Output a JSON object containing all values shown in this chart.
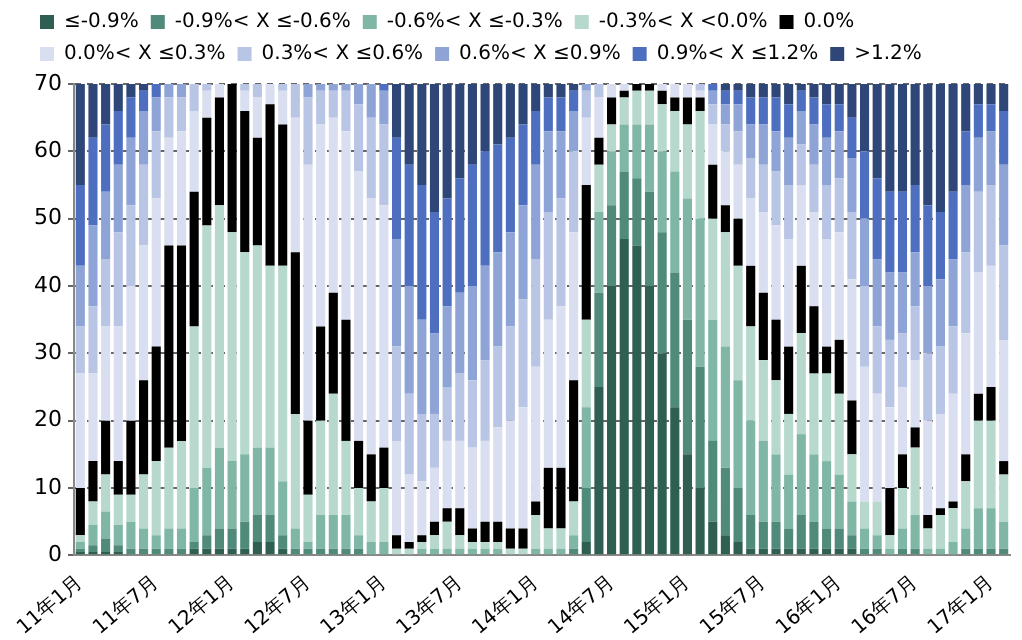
{
  "chart_data": {
    "type": "bar",
    "stacked": true,
    "legend": "top",
    "grid": "y",
    "ylim": [
      0,
      70
    ],
    "yticks": [
      0,
      10,
      20,
      30,
      40,
      50,
      60,
      70
    ],
    "categories": [
      "11年1月",
      null,
      null,
      null,
      null,
      null,
      "11年7月",
      null,
      null,
      null,
      null,
      null,
      "12年1月",
      null,
      null,
      null,
      null,
      null,
      "12年7月",
      null,
      null,
      null,
      null,
      null,
      "13年1月",
      null,
      null,
      null,
      null,
      null,
      "13年7月",
      null,
      null,
      null,
      null,
      null,
      "14年1月",
      null,
      null,
      null,
      null,
      null,
      "14年7月",
      null,
      null,
      null,
      null,
      null,
      "15年1月",
      null,
      null,
      null,
      null,
      null,
      "15年7月",
      null,
      null,
      null,
      null,
      null,
      "16年1月",
      null,
      null,
      null,
      null,
      null,
      "16年7月",
      null,
      null,
      null,
      null,
      null,
      "17年1月",
      null
    ],
    "series": [
      {
        "name": "≤-0.9%",
        "color": "#2f5f52",
        "values": [
          0.5,
          0.5,
          0.5,
          0.5,
          0,
          0,
          0,
          0,
          0,
          1,
          1,
          1,
          1,
          1,
          2,
          2,
          1,
          0,
          0,
          0,
          0,
          0,
          0,
          0,
          0,
          0,
          0,
          0,
          0,
          0,
          0,
          0,
          0,
          0,
          0,
          0,
          0,
          0,
          0,
          0,
          2,
          25,
          40,
          47,
          46,
          40,
          30,
          22,
          15,
          10,
          5,
          3,
          2,
          1,
          1,
          1,
          1,
          1,
          1,
          1,
          1,
          1,
          0,
          0,
          0,
          0,
          0,
          0,
          0,
          0,
          0,
          0,
          0,
          0
        ]
      },
      {
        "name": "-0.9%< X ≤-0.6%",
        "color": "#4f8a7a",
        "values": [
          0.5,
          1,
          2,
          1,
          1,
          1,
          1,
          1,
          1,
          1,
          2,
          3,
          3,
          4,
          4,
          4,
          2,
          1,
          1,
          1,
          1,
          1,
          1,
          0,
          0,
          0,
          0,
          0,
          0,
          0,
          0,
          0,
          0,
          0,
          0,
          0,
          0,
          0,
          0,
          1,
          8,
          14,
          12,
          10,
          10,
          14,
          18,
          20,
          20,
          18,
          12,
          10,
          8,
          5,
          4,
          4,
          3,
          5,
          4,
          3,
          3,
          2,
          1,
          1,
          0,
          1,
          1,
          0,
          0,
          0,
          1,
          1,
          1,
          1
        ]
      },
      {
        "name": "-0.6%< X ≤-0.3%",
        "color": "#80b6a6",
        "values": [
          1,
          3,
          4,
          3,
          4,
          3,
          2,
          3,
          3,
          8,
          10,
          12,
          10,
          10,
          10,
          10,
          8,
          3,
          1,
          5,
          5,
          5,
          2,
          2,
          2,
          0,
          0,
          1,
          1,
          1,
          1,
          1,
          1,
          1,
          0,
          0,
          1,
          1,
          1,
          2,
          12,
          12,
          8,
          7,
          8,
          10,
          12,
          15,
          18,
          22,
          18,
          18,
          16,
          14,
          12,
          10,
          8,
          12,
          10,
          10,
          8,
          5,
          3,
          2,
          1,
          3,
          5,
          1,
          1,
          2,
          3,
          6,
          6,
          4
        ]
      },
      {
        "name": "-0.3%< X <0.0%",
        "color": "#b6d8cd",
        "values": [
          1,
          3.5,
          5.5,
          4.5,
          4,
          8,
          11,
          12,
          13,
          24,
          36,
          36,
          34,
          30,
          30,
          27,
          32,
          17,
          7,
          14,
          18,
          11,
          7,
          6,
          8,
          1,
          1,
          1,
          2,
          4,
          2,
          1,
          1,
          1,
          1,
          1,
          5,
          3,
          3,
          5,
          13,
          7,
          4,
          4,
          5,
          5,
          7,
          9,
          11,
          16,
          15,
          17,
          17,
          14,
          12,
          11,
          9,
          15,
          12,
          13,
          12,
          7,
          4,
          5,
          2,
          6,
          10,
          3,
          5,
          5,
          7,
          13,
          13,
          7
        ]
      },
      {
        "name": "0.0%",
        "color": "#000000",
        "values": [
          7,
          6,
          8,
          5,
          11,
          14,
          17,
          30,
          29,
          20,
          16,
          16,
          22,
          21,
          16,
          24,
          21,
          24,
          11,
          14,
          15,
          18,
          7,
          7,
          6,
          2,
          1,
          1,
          2,
          2,
          4,
          2,
          3,
          3,
          3,
          3,
          2,
          9,
          9,
          18,
          20,
          4,
          4,
          1,
          1,
          1,
          2,
          2,
          4,
          2,
          8,
          4,
          7,
          9,
          10,
          9,
          10,
          10,
          10,
          4,
          8,
          8,
          0,
          0,
          7,
          5,
          3,
          2,
          1,
          1,
          4,
          4,
          5,
          2
        ]
      },
      {
        "name": "0.0%< X ≤0.3%",
        "color": "#d9dff0",
        "values": [
          17,
          13,
          14,
          20,
          20,
          20,
          22,
          16,
          17,
          12,
          4,
          2,
          0,
          3,
          6,
          3,
          5,
          20,
          38,
          30,
          26,
          28,
          40,
          38,
          36,
          14,
          10,
          8,
          8,
          10,
          10,
          12,
          12,
          14,
          16,
          18,
          20,
          22,
          24,
          22,
          10,
          6,
          2,
          1,
          0,
          0,
          1,
          2,
          2,
          1,
          6,
          8,
          8,
          10,
          12,
          14,
          16,
          12,
          14,
          16,
          16,
          18,
          20,
          16,
          12,
          10,
          10,
          14,
          14,
          16,
          18,
          18,
          18,
          18
        ]
      },
      {
        "name": "0.3%< X ≤0.6%",
        "color": "#b9c5e4",
        "values": [
          7,
          10,
          10,
          14,
          12,
          12,
          10,
          6,
          5,
          4,
          1,
          0,
          0,
          1,
          2,
          0,
          1,
          5,
          10,
          5,
          4,
          6,
          10,
          12,
          12,
          14,
          12,
          10,
          8,
          8,
          10,
          10,
          12,
          12,
          14,
          16,
          16,
          16,
          16,
          12,
          4,
          2,
          0,
          0,
          0,
          0,
          0,
          0,
          0,
          1,
          3,
          4,
          5,
          6,
          7,
          8,
          8,
          6,
          7,
          8,
          8,
          10,
          12,
          10,
          10,
          8,
          8,
          10,
          10,
          10,
          12,
          12,
          12,
          14
        ]
      },
      {
        "name": "0.6%< X ≤0.9%",
        "color": "#8fa4d6",
        "values": [
          9,
          12,
          10,
          10,
          10,
          8,
          5,
          2,
          2,
          0,
          0,
          0,
          0,
          0,
          0,
          0,
          0,
          0,
          2,
          1,
          1,
          1,
          3,
          5,
          5,
          16,
          16,
          14,
          12,
          12,
          12,
          14,
          14,
          14,
          14,
          14,
          14,
          12,
          10,
          6,
          1,
          0,
          0,
          0,
          0,
          0,
          0,
          0,
          0,
          0,
          2,
          3,
          4,
          5,
          6,
          6,
          7,
          5,
          6,
          7,
          7,
          8,
          10,
          10,
          10,
          9,
          8,
          10,
          10,
          10,
          10,
          8,
          8,
          12
        ]
      },
      {
        "name": "0.9%< X ≤1.2%",
        "color": "#4e6fbf",
        "values": [
          12,
          13,
          10,
          8,
          6,
          3,
          2,
          0,
          0,
          0,
          0,
          0,
          0,
          0,
          0,
          0,
          0,
          0,
          0,
          0,
          0,
          0,
          0,
          0,
          1,
          15,
          18,
          20,
          18,
          16,
          17,
          18,
          17,
          16,
          14,
          12,
          8,
          5,
          5,
          3,
          0,
          0,
          0,
          0,
          0,
          0,
          0,
          0,
          0,
          0,
          1,
          2,
          2,
          4,
          4,
          5,
          5,
          3,
          4,
          5,
          4,
          6,
          10,
          12,
          12,
          12,
          10,
          12,
          10,
          10,
          8,
          5,
          4,
          8
        ]
      },
      {
        "name": ">1.2%",
        "color": "#2f4778",
        "values": [
          15,
          8,
          6,
          4,
          2,
          1,
          0,
          0,
          0,
          0,
          0,
          0,
          0,
          0,
          0,
          0,
          0,
          0,
          0,
          0,
          0,
          0,
          0,
          0,
          0,
          8,
          12,
          15,
          19,
          17,
          14,
          12,
          10,
          9,
          8,
          6,
          4,
          2,
          2,
          1,
          0,
          0,
          0,
          0,
          0,
          0,
          0,
          0,
          0,
          0,
          0,
          1,
          1,
          2,
          2,
          2,
          3,
          1,
          2,
          3,
          3,
          5,
          10,
          14,
          16,
          16,
          15,
          18,
          19,
          16,
          7,
          3,
          3,
          4
        ]
      }
    ]
  }
}
